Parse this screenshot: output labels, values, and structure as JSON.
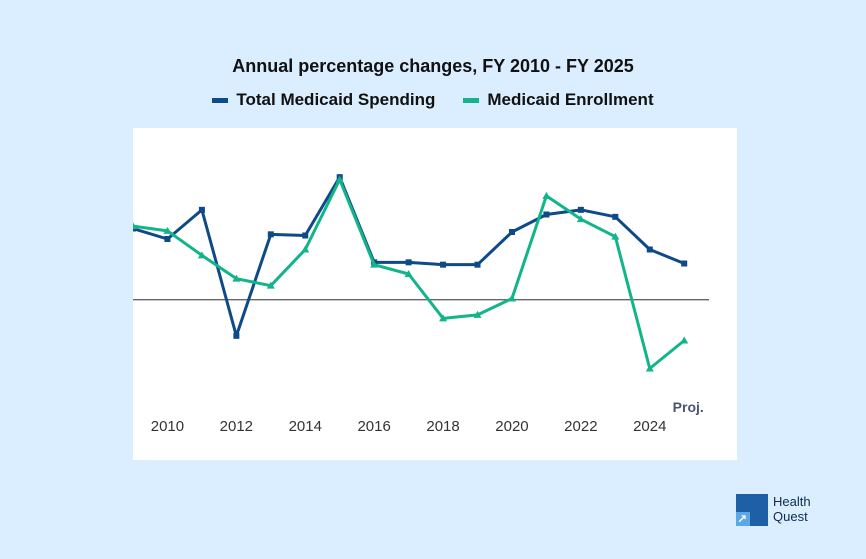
{
  "chart_data": {
    "type": "line",
    "title": "Annual percentage changes, FY 2010 - FY 2025",
    "xlabel": "",
    "ylabel": "",
    "x": [
      2009,
      2010,
      2011,
      2012,
      2013,
      2014,
      2015,
      2016,
      2017,
      2018,
      2019,
      2020,
      2021,
      2022,
      2023,
      2024,
      2025
    ],
    "x_ticks": [
      2010,
      2012,
      2014,
      2016,
      2018,
      2020,
      2022,
      2024
    ],
    "x_tick_labels": [
      "2010",
      "2012",
      "2014",
      "2016",
      "2018",
      "2020",
      "2022",
      "2024"
    ],
    "annotation": "Proj.",
    "xlim": [
      2009,
      2025.4
    ],
    "ylim": [
      -8,
      13
    ],
    "zero_line": true,
    "legend_position": "top",
    "series": [
      {
        "name": "Total Medicaid Spending",
        "color": "#0d4a87",
        "marker": "square",
        "values": [
          6.1,
          5.2,
          7.7,
          -3.1,
          5.6,
          5.5,
          10.5,
          3.2,
          3.2,
          3.0,
          3.0,
          5.8,
          7.3,
          7.7,
          7.1,
          4.3,
          3.1
        ]
      },
      {
        "name": "Medicaid Enrollment",
        "color": "#12b48a",
        "marker": "triangle",
        "values": [
          6.3,
          5.9,
          3.8,
          1.8,
          1.2,
          4.3,
          10.3,
          3.0,
          2.2,
          -1.6,
          -1.3,
          0.1,
          8.9,
          6.9,
          5.4,
          -5.9,
          -3.5
        ]
      }
    ]
  },
  "brand": {
    "line1": "Health",
    "line2": "Quest",
    "mark_icon": "arrow-icon"
  },
  "colors": {
    "background": "#dbeeff",
    "plot_background": "#ffffff",
    "spending": "#0d4a87",
    "enrollment": "#12b48a",
    "zero_line": "#666666",
    "brand": "#1f5fa6"
  }
}
